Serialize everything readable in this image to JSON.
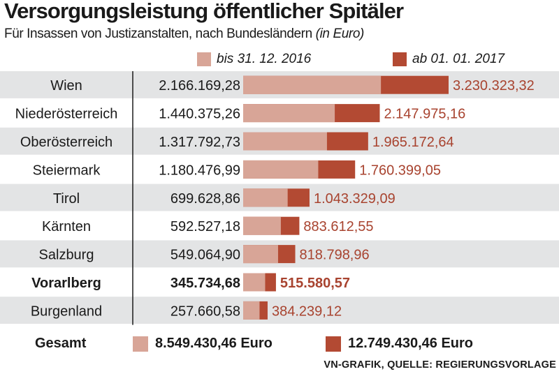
{
  "chart_data": {
    "type": "bar",
    "title": "Versorgungsleistung öffentlicher Spitäler",
    "subtitle": "Für Insassen von Justizanstalten, nach Bundesländern",
    "unit_label": "(in Euro)",
    "legend": [
      "bis 31. 12. 2016",
      "ab 01. 01. 2017"
    ],
    "categories": [
      "Wien",
      "Niederösterreich",
      "Oberösterreich",
      "Steiermark",
      "Tirol",
      "Kärnten",
      "Salzburg",
      "Vorarlberg",
      "Burgenland"
    ],
    "highlight_category": "Vorarlberg",
    "series": [
      {
        "name": "bis 31. 12. 2016",
        "values": [
          2166169.28,
          1440375.26,
          1317792.73,
          1180476.99,
          699628.86,
          592527.18,
          549064.9,
          345734.68,
          257660.58
        ],
        "labels": [
          "2.166.169,28",
          "1.440.375,26",
          "1.317.792,73",
          "1.180.476,99",
          "699.628,86",
          "592.527,18",
          "549.064,90",
          "345.734,68",
          "257.660,58"
        ]
      },
      {
        "name": "ab 01. 01. 2017",
        "values": [
          3230323.32,
          2147975.16,
          1965172.64,
          1760399.05,
          1043329.09,
          883612.55,
          818798.96,
          515580.57,
          384239.12
        ],
        "labels": [
          "3.230.323,32",
          "2.147.975,16",
          "1.965.172,64",
          "1.760.399,05",
          "1.043.329,09",
          "883.612,55",
          "818.798,96",
          "515.580,57",
          "384.239,12"
        ]
      }
    ],
    "xlim": [
      0,
      3230323.32
    ],
    "totals": {
      "label": "Gesamt",
      "values": [
        "8.549.430,46 Euro",
        "12.749.430,46 Euro"
      ]
    },
    "source": "VN-GRAFIK, QUELLE: REGIERUNGSVORLAGE"
  },
  "colors": {
    "series_2016": "#d8a597",
    "series_2017": "#b34a33",
    "value_2017_text": "#a8432f",
    "row_shade": "#e3e4e5",
    "divider": "#1a1a1a"
  }
}
